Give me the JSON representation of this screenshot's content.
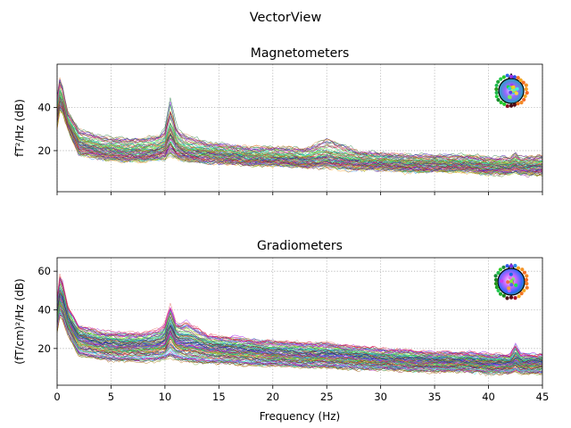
{
  "figure": {
    "suptitle": "VectorView"
  },
  "chart_data": [
    {
      "type": "line",
      "title": "Magnetometers",
      "xlabel": "",
      "ylabel": "fT²/Hz (dB)",
      "xlim": [
        0,
        45
      ],
      "ylim": [
        1,
        60
      ],
      "xticks": [
        0,
        5,
        10,
        15,
        20,
        25,
        30,
        35,
        40,
        45
      ],
      "xtick_labels_visible": false,
      "yticks": [
        20,
        40
      ],
      "grid": true,
      "sensor_inset": "top-right",
      "series_count": 102,
      "typical_profile": {
        "x": [
          0,
          0.3,
          1,
          2,
          4,
          6,
          8,
          10,
          10.5,
          11,
          12,
          14,
          16,
          18,
          20,
          23,
          25,
          28,
          30,
          33,
          35,
          38,
          40,
          42,
          42.5,
          43,
          45
        ],
        "y_low": [
          30,
          40,
          30,
          18,
          16,
          15,
          15,
          16,
          17,
          16,
          15,
          14,
          14,
          13,
          13,
          12,
          12,
          11,
          11,
          10,
          10,
          10,
          9,
          9,
          10,
          9,
          9
        ],
        "y_mid": [
          38,
          46,
          33,
          24,
          21,
          20,
          20,
          21,
          25,
          22,
          20,
          19,
          18,
          17,
          17,
          16,
          17,
          15,
          15,
          14,
          14,
          14,
          13,
          13,
          14,
          13,
          13
        ],
        "y_high": [
          45,
          55,
          38,
          30,
          27,
          26,
          26,
          28,
          36,
          30,
          27,
          24,
          23,
          22,
          22,
          21,
          26,
          20,
          19,
          18,
          18,
          18,
          17,
          17,
          19,
          17,
          18
        ]
      }
    },
    {
      "type": "line",
      "title": "Gradiometers",
      "xlabel": "Frequency (Hz)",
      "ylabel": "(fT/cm)²/Hz (dB)",
      "xlim": [
        0,
        45
      ],
      "ylim": [
        1,
        67
      ],
      "xticks": [
        0,
        5,
        10,
        15,
        20,
        25,
        30,
        35,
        40,
        45
      ],
      "xtick_labels_visible": true,
      "yticks": [
        20,
        40,
        60
      ],
      "grid": true,
      "sensor_inset": "top-right",
      "series_count": 204,
      "typical_profile": {
        "x": [
          0,
          0.3,
          1,
          2,
          4,
          6,
          8,
          10,
          10.5,
          11,
          12,
          14,
          16,
          18,
          20,
          23,
          25,
          28,
          30,
          33,
          35,
          38,
          40,
          42,
          42.5,
          43,
          45
        ],
        "y_low": [
          28,
          38,
          27,
          16,
          14,
          13,
          13,
          14,
          15,
          14,
          13,
          12,
          12,
          11,
          11,
          10,
          10,
          9,
          9,
          8,
          8,
          8,
          7,
          7,
          8,
          7,
          7
        ],
        "y_mid": [
          36,
          48,
          34,
          25,
          22,
          21,
          21,
          22,
          27,
          23,
          22,
          20,
          19,
          18,
          17,
          16,
          16,
          15,
          14,
          13,
          13,
          13,
          12,
          12,
          14,
          12,
          12
        ],
        "y_high": [
          46,
          60,
          42,
          32,
          29,
          28,
          28,
          30,
          36,
          31,
          34,
          27,
          26,
          25,
          24,
          23,
          23,
          21,
          20,
          19,
          18,
          18,
          17,
          17,
          22,
          17,
          17
        ]
      }
    }
  ]
}
